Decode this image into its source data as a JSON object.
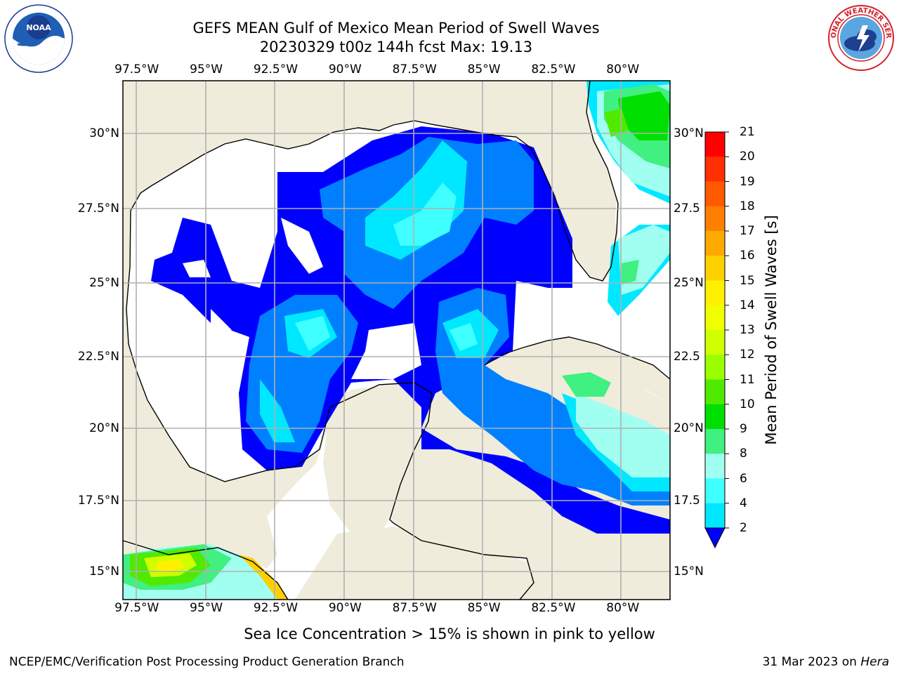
{
  "title": {
    "line1": "GEFS MEAN Gulf of Mexico Mean Period of Swell Waves",
    "line2": "20230329 t00z 144h fcst   Max: 19.13"
  },
  "logos": {
    "left": {
      "text": "NOAA",
      "ring_text": "NATIONAL OCEANIC AND ATMOSPHERIC ADMINISTRATION · U.S. DEPARTMENT OF COMMERCE"
    },
    "right": {
      "ring_text": "NATIONAL WEATHER SERVICE"
    }
  },
  "map": {
    "lon_labels": [
      "97.5°W",
      "95°W",
      "92.5°W",
      "90°W",
      "87.5°W",
      "85°W",
      "82.5°W",
      "80°W"
    ],
    "lon_values": [
      -97.5,
      -95,
      -92.5,
      -90,
      -87.5,
      -85,
      -82.5,
      -80
    ],
    "lat_labels_left": [
      "30°N",
      "27.5°N",
      "25°N",
      "22.5°N",
      "20°N",
      "17.5°N",
      "15°N"
    ],
    "lat_labels_right": [
      "30°N",
      "27.5",
      "25°N",
      "22.5",
      "20°N",
      "17.5",
      "15°N"
    ],
    "lat_values": [
      30,
      27.5,
      25,
      22.5,
      20,
      17.5,
      15
    ],
    "extent": {
      "lon_min": -98,
      "lon_max": -78.3,
      "lat_min": 14,
      "lat_max": 31.8
    },
    "colors": {
      "land": "#efecdc",
      "ocean": "#ffffff",
      "coast": "#000000",
      "grid": "#b0b0b0"
    }
  },
  "colorbar": {
    "title": "Mean Period of Swell Waves [s]",
    "labels": [
      "21",
      "20",
      "19",
      "18",
      "17",
      "16",
      "15",
      "14",
      "13",
      "12",
      "11",
      "10",
      "9",
      "8",
      "6",
      "4",
      "2"
    ],
    "colors": [
      "#ff0000",
      "#ff3000",
      "#ff5a00",
      "#ff8000",
      "#ffaa00",
      "#ffd000",
      "#fff000",
      "#f0ff00",
      "#d0ff00",
      "#9aff00",
      "#50ea00",
      "#00e000",
      "#40f080",
      "#a0fff0",
      "#40ffff",
      "#00e8ff",
      "#0080ff"
    ],
    "extend_color": "#0000ff"
  },
  "subtitle": "Sea Ice Concentration > 15% is shown in pink to yellow",
  "footer": {
    "left": "NCEP/EMC/Verification Post Processing Product Generation Branch",
    "right_prefix": "31 Mar 2023 on ",
    "right_host": "Hera"
  }
}
